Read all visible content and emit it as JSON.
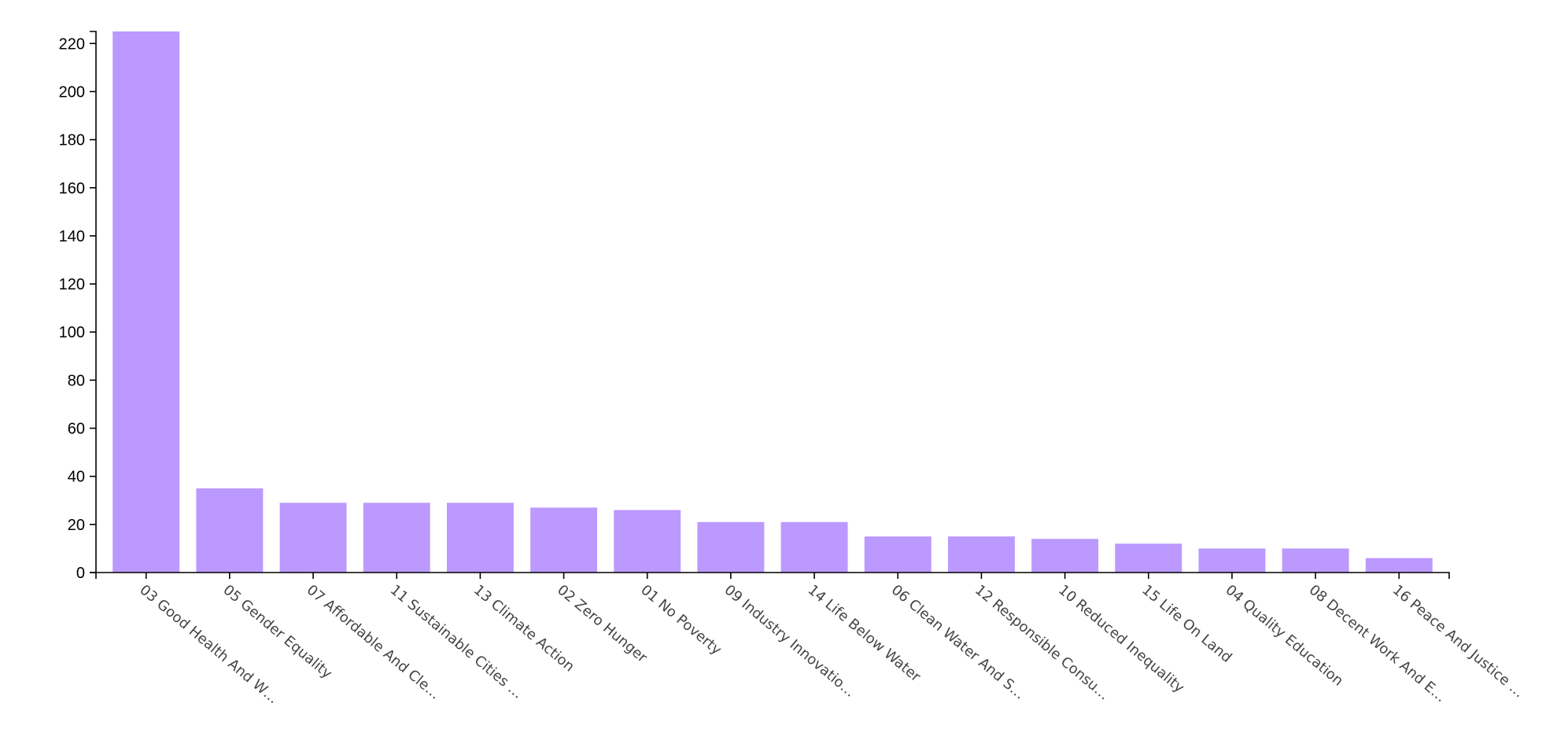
{
  "chart_data": {
    "type": "bar",
    "title": "",
    "xlabel": "",
    "ylabel": "",
    "ylim": [
      0,
      225
    ],
    "yticks": [
      0,
      20,
      40,
      60,
      80,
      100,
      120,
      140,
      160,
      180,
      200,
      220
    ],
    "grid": false,
    "bar_color": "#bb99ff",
    "categories": [
      "03 Good Health And W…",
      "05 Gender Equality",
      "07 Affordable And Cle…",
      "11 Sustainable Cities …",
      "13 Climate Action",
      "02 Zero Hunger",
      "01 No Poverty",
      "09 Industry Innovatio…",
      "14 Life Below Water",
      "06 Clean Water And S…",
      "12 Responsible Consu…",
      "10 Reduced Inequality",
      "15 Life On Land",
      "04 Quality Education",
      "08 Decent Work And E…",
      "16 Peace And Justice …"
    ],
    "values": [
      225,
      35,
      29,
      29,
      29,
      27,
      26,
      21,
      21,
      15,
      15,
      14,
      12,
      10,
      10,
      6
    ]
  }
}
